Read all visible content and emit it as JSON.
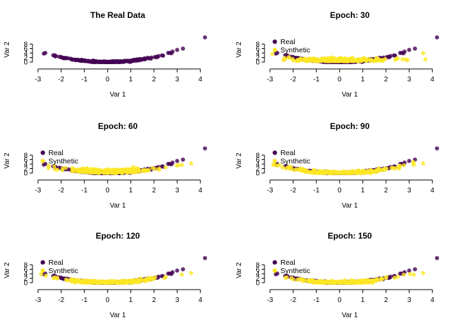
{
  "colors": {
    "real": "#440154",
    "synthetic": "#FDE725"
  },
  "chart_data": [
    {
      "type": "scatter",
      "title": "The Real Data",
      "xlabel": "Var 1",
      "ylabel": "Var 2",
      "xlim": [
        -3,
        4
      ],
      "ylim": [
        0,
        10
      ],
      "xticks": [
        "-3",
        "-2",
        "-1",
        "0",
        "1",
        "2",
        "3",
        "4"
      ],
      "yticks": [
        "0",
        "2",
        "4",
        "6",
        "8"
      ],
      "legend": false,
      "series": [
        {
          "name": "Real",
          "color": "#440154",
          "shape": "parabola",
          "x_range": [
            -2.8,
            3.3
          ],
          "outlier": [
            4.2,
            11
          ]
        }
      ]
    },
    {
      "type": "scatter",
      "title": "Epoch: 30",
      "xlabel": "Var 1",
      "ylabel": "Var 2",
      "xlim": [
        -3,
        4
      ],
      "ylim": [
        0,
        10
      ],
      "xticks": [
        "-3",
        "-2",
        "-1",
        "0",
        "1",
        "2",
        "3",
        "4"
      ],
      "yticks": [
        "0",
        "2",
        "4",
        "6",
        "8"
      ],
      "legend": true,
      "legend_position": "top-left",
      "series": [
        {
          "name": "Real",
          "color": "#440154",
          "shape": "parabola",
          "x_range": [
            -2.8,
            3.3
          ],
          "outlier": [
            4.2,
            11
          ]
        },
        {
          "name": "Synthetic",
          "color": "#FDE725",
          "shape": "flat-cloud",
          "x_range": [
            -3.0,
            3.7
          ]
        }
      ]
    },
    {
      "type": "scatter",
      "title": "Epoch: 60",
      "xlabel": "Var 1",
      "ylabel": "Var 2",
      "xlim": [
        -3,
        4
      ],
      "ylim": [
        0,
        10
      ],
      "xticks": [
        "-3",
        "-2",
        "-1",
        "0",
        "1",
        "2",
        "3",
        "4"
      ],
      "yticks": [
        "0",
        "2",
        "4",
        "6",
        "8"
      ],
      "legend": true,
      "legend_position": "top-left",
      "series": [
        {
          "name": "Real",
          "color": "#440154",
          "shape": "parabola",
          "x_range": [
            -2.8,
            3.3
          ],
          "outlier": [
            4.2,
            11
          ]
        },
        {
          "name": "Synthetic",
          "color": "#FDE725",
          "shape": "shallow-parabola",
          "x_range": [
            -3.0,
            3.6
          ]
        }
      ]
    },
    {
      "type": "scatter",
      "title": "Epoch: 90",
      "xlabel": "Var 1",
      "ylabel": "Var 2",
      "xlim": [
        -3,
        4
      ],
      "ylim": [
        0,
        10
      ],
      "xticks": [
        "-3",
        "-2",
        "-1",
        "0",
        "1",
        "2",
        "3",
        "4"
      ],
      "yticks": [
        "0",
        "2",
        "4",
        "6",
        "8"
      ],
      "legend": true,
      "legend_position": "top-left",
      "series": [
        {
          "name": "Real",
          "color": "#440154",
          "shape": "parabola",
          "x_range": [
            -2.8,
            3.3
          ],
          "outlier": [
            4.2,
            11
          ]
        },
        {
          "name": "Synthetic",
          "color": "#FDE725",
          "shape": "parabola-fit",
          "x_range": [
            -2.9,
            3.4
          ]
        }
      ]
    },
    {
      "type": "scatter",
      "title": "Epoch: 120",
      "xlabel": "Var 1",
      "ylabel": "Var 2",
      "xlim": [
        -3,
        4
      ],
      "ylim": [
        0,
        10
      ],
      "xticks": [
        "-3",
        "-2",
        "-1",
        "0",
        "1",
        "2",
        "3",
        "4"
      ],
      "yticks": [
        "0",
        "2",
        "4",
        "6",
        "8"
      ],
      "legend": true,
      "legend_position": "top-left",
      "series": [
        {
          "name": "Real",
          "color": "#440154",
          "shape": "parabola",
          "x_range": [
            -2.8,
            3.3
          ],
          "outlier": [
            4.2,
            11
          ]
        },
        {
          "name": "Synthetic",
          "color": "#FDE725",
          "shape": "parabola-fit",
          "x_range": [
            -2.9,
            3.6
          ]
        }
      ]
    },
    {
      "type": "scatter",
      "title": "Epoch: 150",
      "xlabel": "Var 1",
      "ylabel": "Var 2",
      "xlim": [
        -3,
        4
      ],
      "ylim": [
        0,
        10
      ],
      "xticks": [
        "-3",
        "-2",
        "-1",
        "0",
        "1",
        "2",
        "3",
        "4"
      ],
      "yticks": [
        "0",
        "2",
        "4",
        "6",
        "8"
      ],
      "legend": true,
      "legend_position": "top-left",
      "series": [
        {
          "name": "Real",
          "color": "#440154",
          "shape": "parabola",
          "x_range": [
            -2.8,
            3.3
          ],
          "outlier": [
            4.2,
            11
          ]
        },
        {
          "name": "Synthetic",
          "color": "#FDE725",
          "shape": "parabola-fit",
          "x_range": [
            -2.9,
            3.7
          ]
        }
      ]
    }
  ]
}
